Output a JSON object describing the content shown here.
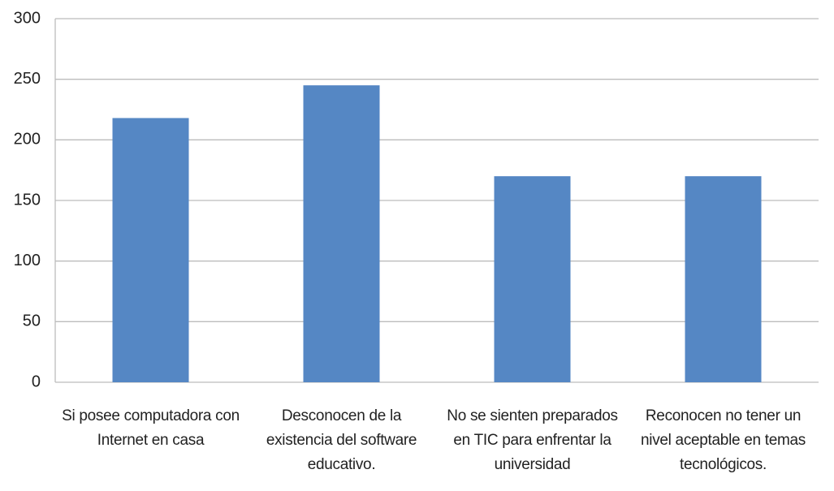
{
  "chart_data": {
    "type": "bar",
    "categories": [
      "Si posee computadora con Internet en casa",
      "Desconocen de la existencia del software educativo.",
      "No se sienten preparados en TIC para enfrentar la universidad",
      "Reconocen no tener un nivel aceptable en temas tecnológicos."
    ],
    "values": [
      218,
      245,
      170,
      170
    ],
    "color": "#5587c4",
    "ylim": [
      0,
      300
    ],
    "yticks": [
      0,
      50,
      100,
      150,
      200,
      250,
      300
    ],
    "grid": true
  }
}
